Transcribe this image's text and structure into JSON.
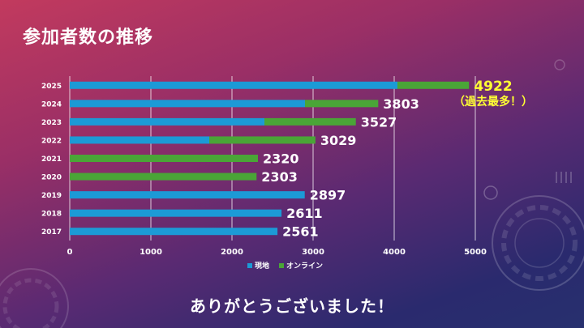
{
  "slide": {
    "title": "参加者数の推移",
    "footer": "ありがとうございました！"
  },
  "colors": {
    "onsite": "#1c9ad6",
    "online": "#4aa537",
    "label": "#ffffff",
    "highlight": "#ffff33",
    "grid": "#ffffff",
    "axis_text": "#ffffff"
  },
  "chart_data": {
    "type": "bar",
    "orientation": "horizontal",
    "stacked": true,
    "categories": [
      "2025",
      "2024",
      "2023",
      "2022",
      "2021",
      "2020",
      "2019",
      "2018",
      "2017"
    ],
    "series": [
      {
        "name": "現地",
        "values": [
          4040,
          2900,
          2400,
          1720,
          0,
          0,
          2897,
          2611,
          2561
        ]
      },
      {
        "name": "オンライン",
        "values": [
          882,
          903,
          1127,
          1309,
          2320,
          2303,
          0,
          0,
          0
        ]
      }
    ],
    "totals": [
      "4922",
      "3803",
      "3527",
      "3029",
      "2320",
      "2303",
      "2897",
      "2611",
      "2561"
    ],
    "highlight_note": "（過去最多！）",
    "xlim": [
      0,
      5000
    ],
    "xticks": [
      "0",
      "1000",
      "2000",
      "3000",
      "4000",
      "5000"
    ],
    "grid": true,
    "legend": "bottom"
  }
}
